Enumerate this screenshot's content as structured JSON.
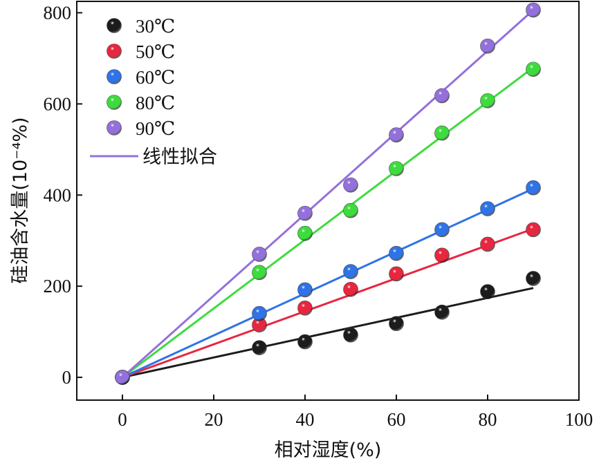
{
  "chart_data": {
    "type": "scatter",
    "xlabel": "相对湿度(%)",
    "ylabel": "硅油含水量(10⁻⁴%)",
    "xlim": [
      -10,
      100
    ],
    "ylim": [
      -50,
      825
    ],
    "xticks": [
      0,
      20,
      40,
      60,
      80,
      100
    ],
    "yticks": [
      0,
      200,
      400,
      600,
      800
    ],
    "grid": false,
    "legend_position": "top-left",
    "fit_label": "线性拟合",
    "fit_color": "#9370DB",
    "series": [
      {
        "name": "30℃",
        "color": "#1c1c1c",
        "x": [
          0,
          30,
          40,
          50,
          60,
          70,
          80,
          90
        ],
        "y": [
          0,
          65,
          78,
          93,
          118,
          143,
          188,
          217
        ],
        "fit": [
          [
            0,
            0
          ],
          [
            90,
            196
          ]
        ]
      },
      {
        "name": "50℃",
        "color": "#e8263f",
        "x": [
          0,
          30,
          40,
          50,
          60,
          70,
          80,
          90
        ],
        "y": [
          0,
          115,
          152,
          193,
          227,
          268,
          292,
          324
        ],
        "fit": [
          [
            0,
            0
          ],
          [
            90,
            326
          ]
        ]
      },
      {
        "name": "60℃",
        "color": "#2f73e8",
        "x": [
          0,
          30,
          40,
          50,
          60,
          70,
          80,
          90
        ],
        "y": [
          0,
          140,
          192,
          232,
          272,
          324,
          370,
          416
        ],
        "fit": [
          [
            0,
            0
          ],
          [
            90,
            414
          ]
        ]
      },
      {
        "name": "80℃",
        "color": "#3ddc3d",
        "x": [
          0,
          30,
          40,
          50,
          60,
          70,
          80,
          90
        ],
        "y": [
          0,
          230,
          316,
          366,
          458,
          536,
          607,
          676
        ],
        "fit": [
          [
            0,
            0
          ],
          [
            90,
            680
          ]
        ]
      },
      {
        "name": "90℃",
        "color": "#9370DB",
        "x": [
          0,
          30,
          40,
          50,
          60,
          70,
          80,
          90
        ],
        "y": [
          0,
          270,
          360,
          422,
          532,
          618,
          727,
          806
        ],
        "fit": [
          [
            0,
            0
          ],
          [
            90,
            806
          ]
        ]
      }
    ]
  }
}
